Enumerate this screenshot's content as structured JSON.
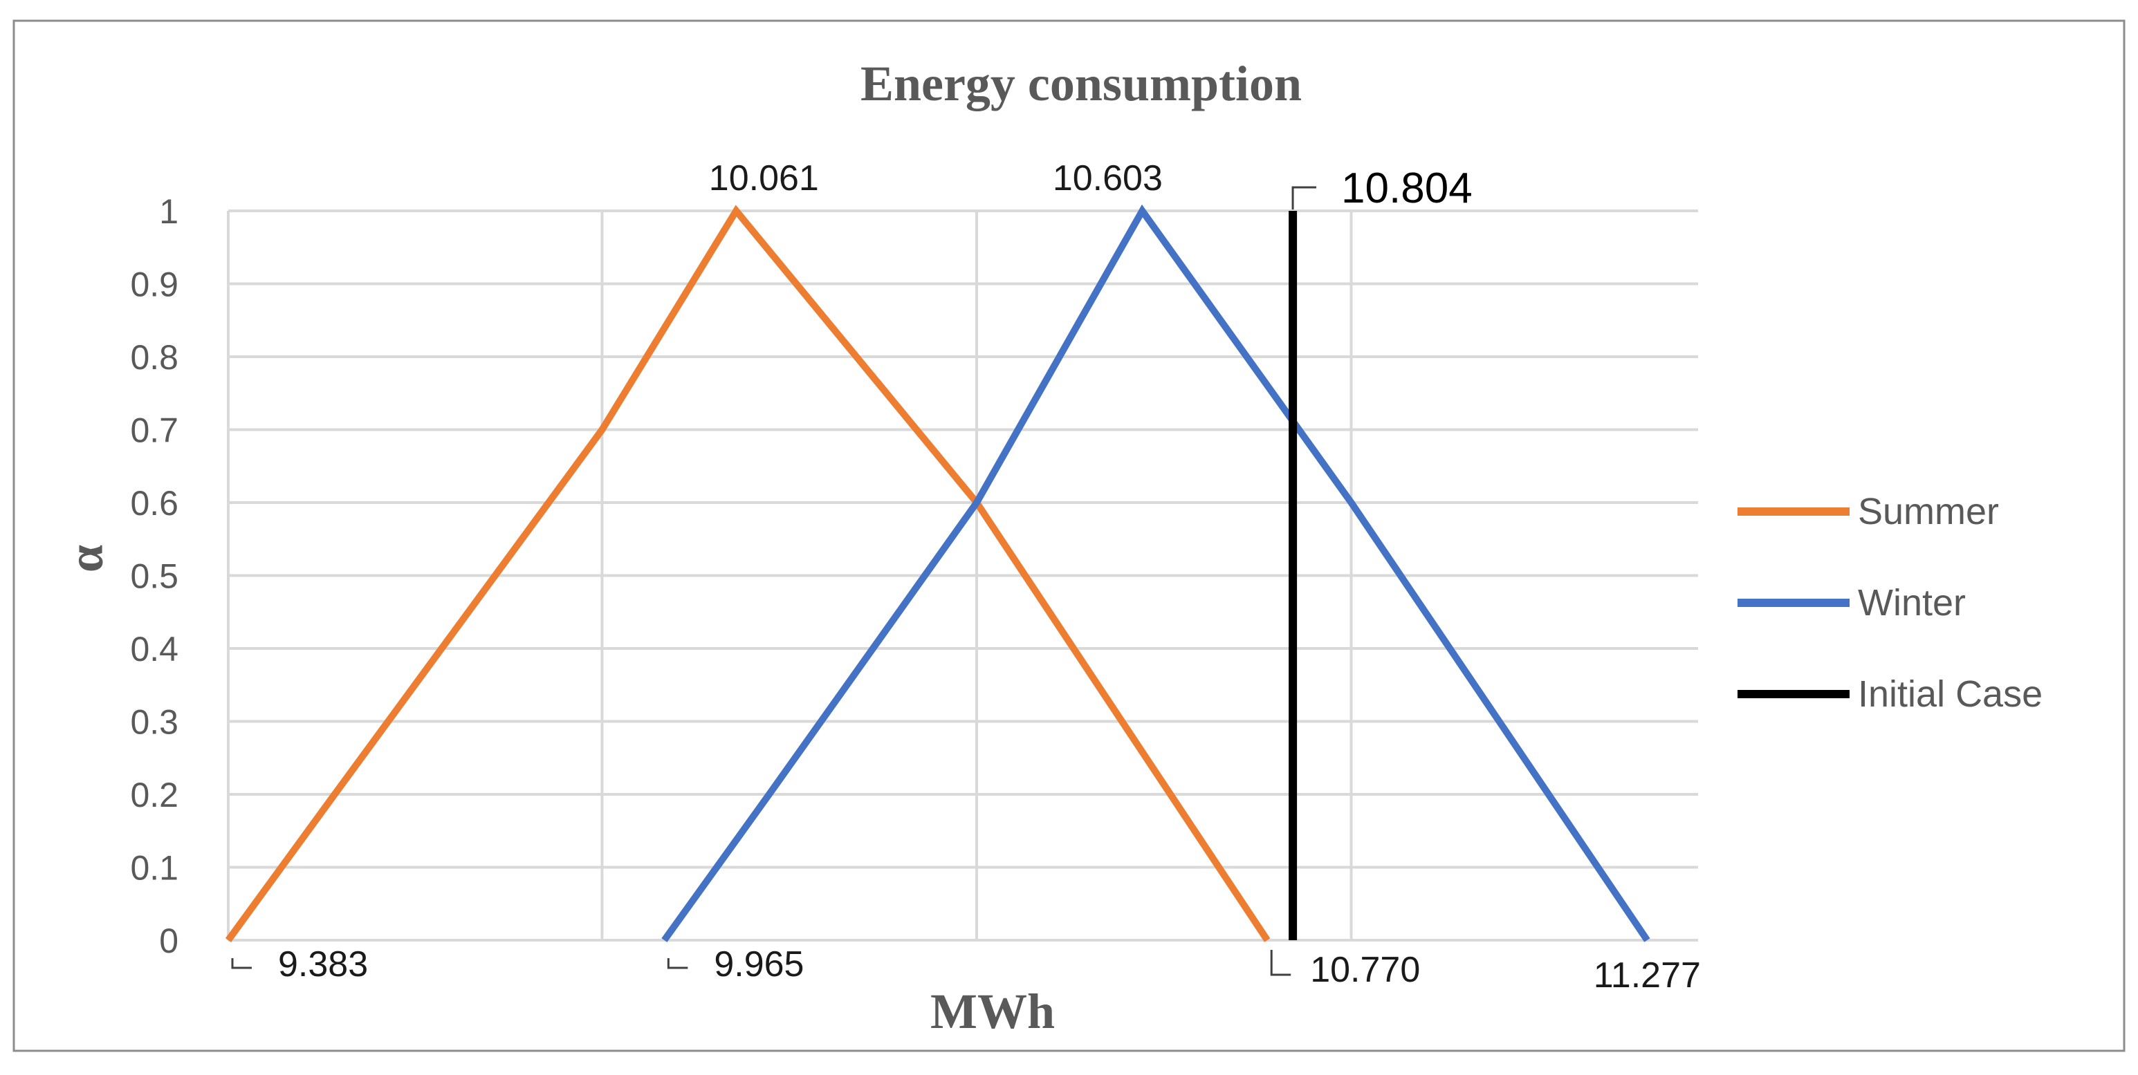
{
  "chart_data": {
    "type": "line",
    "title": "Energy consumption",
    "xlabel": "MWh",
    "ylabel": "α",
    "xlim": [
      9.383,
      11.345
    ],
    "ylim": [
      0,
      1
    ],
    "y_ticks": [
      "0",
      "0.1",
      "0.2",
      "0.3",
      "0.4",
      "0.5",
      "0.6",
      "0.7",
      "0.8",
      "0.9",
      "1"
    ],
    "x_gridlines": [
      9.882,
      10.382,
      10.882
    ],
    "grid": true,
    "legend_position": "right",
    "series": [
      {
        "name": "Summer",
        "color": "#ED7D31",
        "points": [
          [
            9.383,
            0
          ],
          [
            9.525,
            0.2
          ],
          [
            9.882,
            0.7
          ],
          [
            10.061,
            1
          ],
          [
            10.382,
            0.6
          ],
          [
            10.77,
            0
          ]
        ]
      },
      {
        "name": "Winter",
        "color": "#4472C4",
        "points": [
          [
            9.965,
            0
          ],
          [
            10.105,
            0.2
          ],
          [
            10.382,
            0.6
          ],
          [
            10.603,
            1
          ],
          [
            10.882,
            0.6
          ],
          [
            11.277,
            0
          ]
        ]
      },
      {
        "name": "Initial Case",
        "color": "#000000",
        "points": [
          [
            10.804,
            0
          ],
          [
            10.804,
            1
          ]
        ]
      }
    ],
    "annotations": [
      {
        "text": "9.383",
        "x": 9.383,
        "y": 0
      },
      {
        "text": "9.965",
        "x": 9.965,
        "y": 0
      },
      {
        "text": "10.770",
        "x": 10.77,
        "y": 0
      },
      {
        "text": "11.277",
        "x": 11.277,
        "y": 0
      },
      {
        "text": "10.061",
        "x": 10.061,
        "y": 1
      },
      {
        "text": "10.603",
        "x": 10.603,
        "y": 1
      },
      {
        "text": "10.804",
        "x": 10.804,
        "y": 1
      }
    ]
  }
}
